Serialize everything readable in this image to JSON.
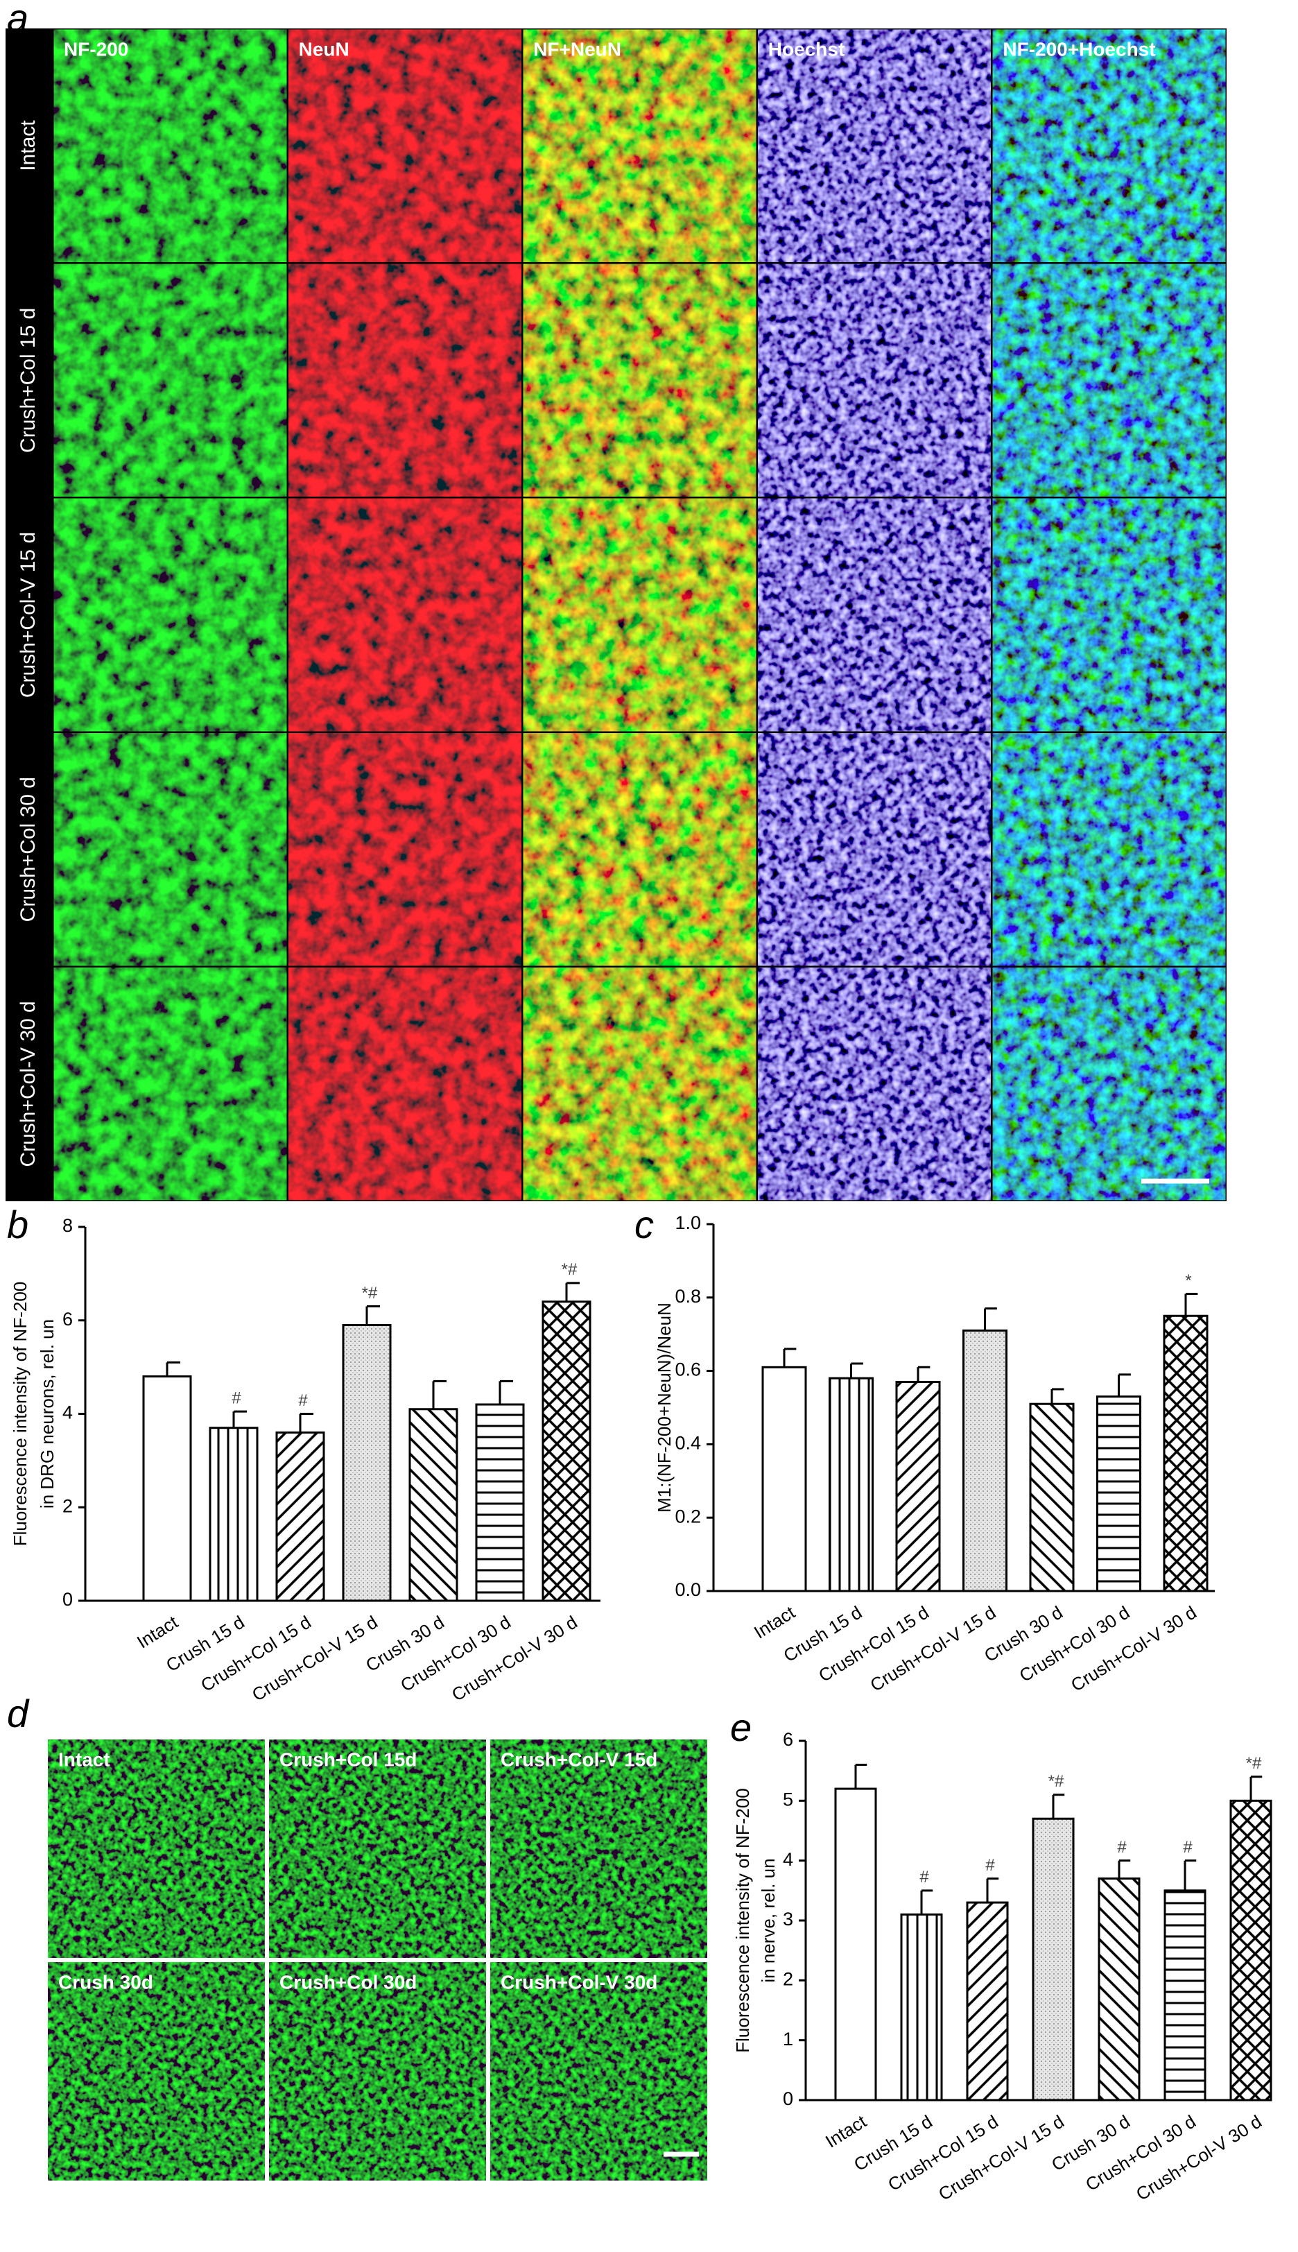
{
  "panel_labels": [
    "a",
    "b",
    "c",
    "d",
    "e"
  ],
  "panel_a": {
    "columns": [
      "NF-200",
      "NeuN",
      "NF+NeuN",
      "Hoechst",
      "NF-200+Hoechst"
    ],
    "rows": [
      "Intact",
      "Crush+Col 15 d",
      "Crush+Col-V 15 d",
      "Crush+Col 30 d",
      "Crush+Col-V 30 d"
    ]
  },
  "panel_d": {
    "labels": [
      "Intact",
      "Crush+Col 15d",
      "Crush+Col-V 15d",
      "Crush 30d",
      "Crush+Col 30d",
      "Crush+Col-V 30d"
    ]
  },
  "chart_data": [
    {
      "type": "bar",
      "ylabel": [
        "Fluorescence intensity of NF-200",
        "in  DRG neurons, rel. un"
      ],
      "categories": [
        "Intact",
        "Crush 15 d",
        "Crush+Col 15 d",
        "Crush+Col-V 15 d",
        "Crush 30 d",
        "Crush+Col 30 d",
        "Crush+Col-V 30 d"
      ],
      "values": [
        4.8,
        3.7,
        3.6,
        5.9,
        4.1,
        4.2,
        6.4
      ],
      "errors": [
        0.3,
        0.35,
        0.4,
        0.4,
        0.6,
        0.5,
        0.4
      ],
      "annotations": [
        null,
        "#",
        "#",
        "*#",
        null,
        null,
        "*#"
      ],
      "ylim": [
        0,
        8
      ],
      "yticks": [
        0,
        2,
        4,
        6,
        8
      ]
    },
    {
      "type": "bar",
      "ylabel": [
        "M1:(NF-200+NeuN)/NeuN"
      ],
      "categories": [
        "Intact",
        "Crush 15 d",
        "Crush+Col 15 d",
        "Crush+Col-V 15 d",
        "Crush 30 d",
        "Crush+Col 30 d",
        "Crush+Col-V 30 d"
      ],
      "values": [
        0.61,
        0.58,
        0.57,
        0.71,
        0.51,
        0.53,
        0.75
      ],
      "errors": [
        0.05,
        0.04,
        0.04,
        0.06,
        0.04,
        0.06,
        0.06
      ],
      "annotations": [
        null,
        null,
        null,
        null,
        null,
        null,
        "*"
      ],
      "ylim": [
        0,
        1
      ],
      "yticks": [
        {
          "value": 0,
          "label": "0.0"
        },
        {
          "value": 0.2,
          "label": "0.2"
        },
        {
          "value": 0.4,
          "label": "0.4"
        },
        {
          "value": 0.6,
          "label": "0.6"
        },
        {
          "value": 0.8,
          "label": "0.8"
        },
        {
          "value": 1,
          "label": "1.0"
        }
      ]
    },
    {
      "type": "bar",
      "ylabel": [
        "Fluorescence intensity of NF-200",
        "in  nerve, rel. un"
      ],
      "categories": [
        "Intact",
        "Crush 15 d",
        "Crush+Col 15 d",
        "Crush+Col-V 15 d",
        "Crush 30 d",
        "Crush+Col 30 d",
        "Crush+Col-V 30 d"
      ],
      "values": [
        5.2,
        3.1,
        3.3,
        4.7,
        3.7,
        3.5,
        5.0
      ],
      "errors": [
        0.4,
        0.4,
        0.4,
        0.4,
        0.3,
        0.5,
        0.4
      ],
      "annotations": [
        null,
        "#",
        "#",
        "*#",
        "#",
        "#",
        "*#"
      ],
      "ylim": [
        0,
        6
      ],
      "yticks": [
        0,
        1,
        2,
        3,
        4,
        5,
        6
      ]
    }
  ]
}
